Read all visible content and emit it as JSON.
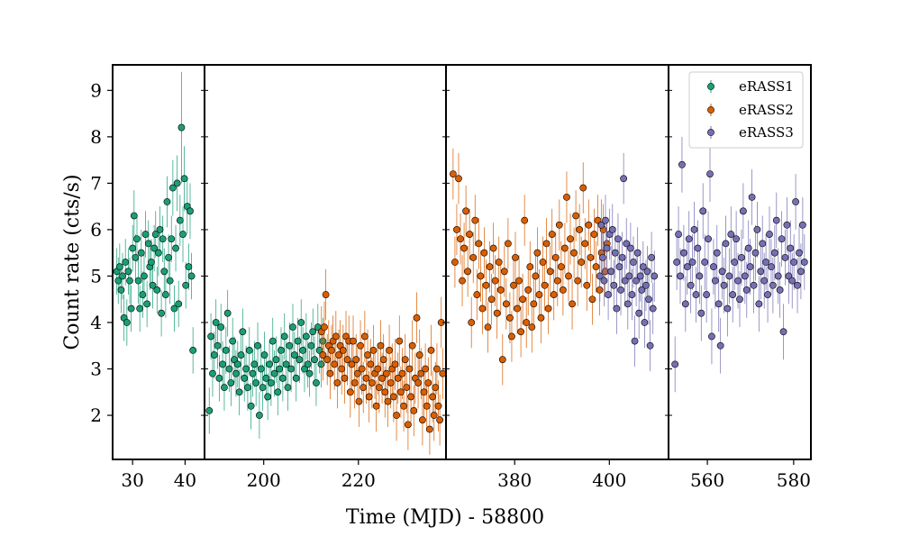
{
  "chart_data": {
    "type": "scatter",
    "xlabel": "Time (MJD) - 58800",
    "ylabel": "Count rate (cts/s)",
    "ylim": [
      1.05,
      9.55
    ],
    "yticks": [
      "2",
      "3",
      "4",
      "5",
      "6",
      "7",
      "8",
      "9"
    ],
    "legend": {
      "placement": "top-right",
      "entries": [
        "eRASS1",
        "eRASS2",
        "eRASS3"
      ]
    },
    "colors": {
      "eRASS1": "#1b9e77",
      "eRASS2": "#d95f02",
      "eRASS3": "#7570b3"
    },
    "panels": [
      {
        "xlim": [
          26.2,
          43.7
        ],
        "xticks": [
          "30",
          "40"
        ],
        "series": [
          {
            "name": "eRASS1",
            "x_start": 27.0,
            "x_end": 41.5,
            "y": [
              5.1,
              4.9,
              5.2,
              4.7,
              5.0,
              4.1,
              5.3,
              4.0,
              5.1,
              4.9,
              4.3,
              5.6,
              6.3,
              5.4,
              5.8,
              4.9,
              4.3,
              5.5,
              4.6,
              5.0,
              5.9,
              4.4,
              5.7,
              5.2,
              5.3,
              4.8,
              5.6,
              5.9,
              4.7,
              5.5,
              6.0,
              4.2,
              5.8,
              5.1,
              4.6,
              6.6,
              5.4,
              4.9,
              5.8,
              6.9,
              4.3,
              5.6,
              7.0,
              4.4,
              6.2,
              8.2,
              5.9,
              7.1,
              4.8,
              6.5,
              5.2,
              6.4,
              5.0,
              3.4
            ],
            "err": [
              0.5,
              0.5,
              0.5,
              0.5,
              0.5,
              0.5,
              0.5,
              0.5,
              0.5,
              0.5,
              0.5,
              0.5,
              0.55,
              0.5,
              0.5,
              0.5,
              0.5,
              0.5,
              0.5,
              0.5,
              0.5,
              0.5,
              0.5,
              0.5,
              0.5,
              0.5,
              0.5,
              0.5,
              0.5,
              0.5,
              0.5,
              0.5,
              0.5,
              0.5,
              0.5,
              0.55,
              0.5,
              0.5,
              0.5,
              0.6,
              0.5,
              0.5,
              0.6,
              0.5,
              0.55,
              1.2,
              0.6,
              0.7,
              0.5,
              0.6,
              0.5,
              0.6,
              0.5,
              0.5
            ]
          }
        ]
      },
      {
        "xlim": [
          187.5,
          238.5
        ],
        "xticks": [
          "200",
          "220"
        ],
        "series": [
          {
            "name": "eRASS1",
            "x_start": 188.5,
            "x_end": 212.5,
            "y": [
              2.1,
              3.7,
              2.9,
              3.3,
              4.0,
              3.5,
              2.8,
              3.9,
              3.1,
              2.6,
              3.4,
              4.2,
              3.0,
              2.7,
              3.6,
              3.2,
              2.9,
              3.1,
              2.5,
              3.3,
              3.8,
              2.8,
              3.0,
              2.6,
              3.4,
              2.2,
              2.9,
              3.1,
              2.7,
              3.5,
              2.0,
              3.0,
              2.6,
              3.3,
              2.8,
              2.4,
              3.1,
              2.7,
              3.6,
              2.9,
              3.2,
              2.5,
              3.0,
              3.4,
              2.8,
              3.7,
              3.1,
              2.6,
              3.5,
              3.0,
              3.9,
              3.3,
              2.8,
              3.6,
              3.2,
              4.0,
              3.4,
              3.0,
              3.7,
              3.1,
              2.9,
              3.5,
              3.8,
              3.2,
              2.7,
              3.9,
              3.4,
              3.1,
              3.6
            ],
            "err": 0.5
          },
          {
            "name": "eRASS2",
            "x_start": 212.2,
            "x_end": 237.8,
            "y": [
              3.8,
              3.3,
              3.9,
              4.6,
              3.2,
              3.5,
              2.9,
              3.4,
              3.6,
              3.1,
              3.7,
              2.7,
              3.3,
              3.5,
              3.0,
              3.4,
              2.8,
              3.7,
              3.2,
              3.6,
              2.5,
              3.1,
              3.6,
              2.7,
              3.2,
              2.9,
              2.3,
              3.5,
              3.0,
              2.6,
              3.7,
              2.8,
              3.3,
              2.4,
              3.1,
              2.7,
              3.4,
              2.9,
              2.2,
              3.0,
              2.6,
              3.5,
              2.8,
              3.2,
              2.5,
              2.9,
              2.3,
              3.4,
              2.7,
              3.0,
              2.4,
              3.1,
              2.0,
              2.8,
              3.6,
              2.5,
              2.9,
              2.2,
              3.2,
              2.6,
              1.8,
              3.0,
              2.4,
              3.5,
              2.1,
              2.8,
              4.1,
              2.7,
              3.3,
              2.9,
              1.9,
              2.5,
              3.0,
              2.2,
              2.7,
              1.7,
              3.4,
              2.4,
              2.0,
              2.6,
              3.0,
              2.2,
              1.9,
              4.0,
              2.9
            ],
            "err": 0.55
          }
        ]
      },
      {
        "xlim": [
          365.5,
          412.5
        ],
        "xticks": [
          "380",
          "400"
        ],
        "series": [
          {
            "name": "eRASS2",
            "x_start": 367.0,
            "x_end": 399.5,
            "y": [
              7.2,
              5.3,
              6.0,
              7.1,
              5.8,
              4.9,
              5.6,
              6.4,
              5.1,
              5.9,
              4.0,
              5.4,
              6.2,
              4.6,
              5.7,
              5.0,
              4.3,
              5.5,
              4.8,
              3.9,
              5.2,
              4.5,
              5.6,
              4.9,
              4.2,
              5.3,
              4.7,
              3.2,
              5.1,
              4.4,
              5.7,
              4.1,
              3.7,
              4.8,
              5.4,
              4.3,
              4.9,
              3.8,
              4.5,
              6.2,
              4.0,
              4.7,
              5.2,
              3.9,
              4.4,
              5.0,
              5.5,
              4.6,
              4.1,
              5.3,
              4.8,
              5.7,
              4.3,
              5.1,
              5.9,
              4.6,
              5.4,
              4.9,
              6.1,
              5.2,
              4.7,
              5.6,
              6.7,
              5.0,
              5.8,
              4.4,
              5.5,
              6.3,
              4.9,
              6.0,
              5.3,
              6.9,
              5.7,
              4.8,
              6.1,
              5.4,
              4.5,
              5.9,
              5.2,
              6.2,
              4.7,
              5.5,
              6.0,
              5.1,
              5.7
            ],
            "err": 0.55
          },
          {
            "name": "eRASS3",
            "x_start": 398.0,
            "x_end": 409.5,
            "y": [
              5.0,
              6.1,
              5.4,
              4.9,
              6.2,
              5.6,
              4.6,
              5.9,
              5.1,
              6.0,
              4.8,
              5.5,
              4.3,
              5.8,
              5.2,
              4.7,
              5.4,
              7.1,
              4.9,
              5.7,
              4.4,
              5.0,
              5.6,
              4.6,
              5.3,
              3.6,
              4.9,
              5.5,
              4.2,
              5.0,
              4.7,
              5.2,
              4.0,
              4.8,
              5.1,
              4.5,
              3.5,
              5.4,
              4.3,
              5.0
            ],
            "err": 0.55
          }
        ]
      },
      {
        "xlim": [
          551.0,
          584.0
        ],
        "xticks": [
          "560",
          "580"
        ],
        "series": [
          {
            "name": "eRASS3",
            "x_start": 552.5,
            "x_end": 582.5,
            "y": [
              3.1,
              5.3,
              5.9,
              5.0,
              7.4,
              5.5,
              4.4,
              5.2,
              5.8,
              4.8,
              5.3,
              6.0,
              4.6,
              5.6,
              5.0,
              4.2,
              6.4,
              5.3,
              4.6,
              5.8,
              7.2,
              3.7,
              5.2,
              4.9,
              5.5,
              4.4,
              3.5,
              5.1,
              4.8,
              5.7,
              4.3,
              5.0,
              5.9,
              4.6,
              5.3,
              5.8,
              4.9,
              4.5,
              5.4,
              6.4,
              5.0,
              4.7,
              5.6,
              5.2,
              6.7,
              4.8,
              5.5,
              6.0,
              4.4,
              5.1,
              5.7,
              4.9,
              5.3,
              4.6,
              5.9,
              5.2,
              4.8,
              5.5,
              6.2,
              5.0,
              4.7,
              5.8,
              3.8,
              5.4,
              6.1,
              5.0,
              5.6,
              4.9,
              5.3,
              6.6,
              4.8,
              5.5,
              5.1,
              6.1,
              5.3
            ],
            "err": 0.6
          }
        ]
      }
    ]
  }
}
